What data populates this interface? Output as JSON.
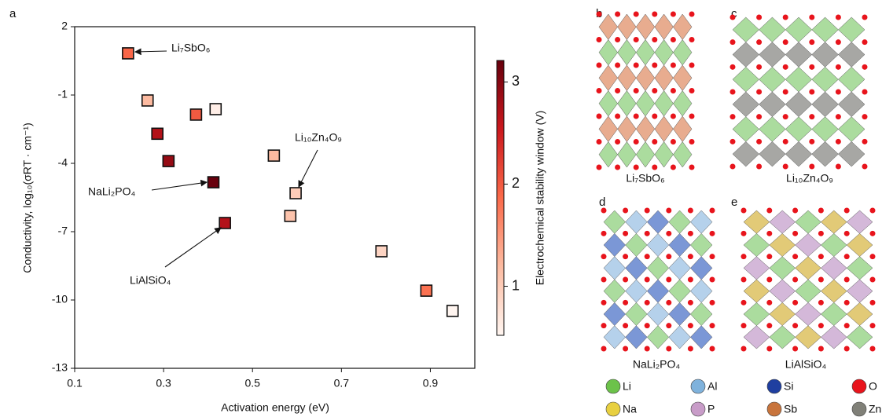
{
  "chart_data": {
    "type": "scatter",
    "panel_label": "a",
    "x_label": "Activation energy (eV)",
    "y_label": "Conductivity, log₁₀(σRT · cm⁻¹)",
    "x": [
      0.22,
      0.264,
      0.286,
      0.311,
      0.373,
      0.417,
      0.412,
      0.438,
      0.548,
      0.597,
      0.585,
      0.79,
      0.891,
      0.95
    ],
    "values": [
      0.83,
      -1.24,
      -2.7,
      -3.9,
      -1.86,
      -1.62,
      -4.83,
      -6.62,
      -3.66,
      -5.31,
      -6.31,
      -7.86,
      -9.59,
      -10.48
    ],
    "color_values": [
      1.9,
      1.2,
      2.7,
      2.9,
      2.0,
      0.6,
      3.2,
      2.7,
      1.2,
      1.0,
      1.1,
      0.9,
      1.8,
      0.5
    ],
    "xlim": [
      0.1,
      1.0
    ],
    "ylim": [
      -13,
      2
    ],
    "xticks": [
      0.1,
      0.3,
      0.5,
      0.7,
      0.9
    ],
    "yticks": [
      2,
      -1,
      -4,
      -7,
      -10,
      -13
    ],
    "colorbar": {
      "label": "Electrochemical stability window (V)",
      "clim": [
        0.52,
        3.21
      ],
      "ticks": [
        1,
        2,
        3
      ],
      "colormap": [
        "#fff5f0",
        "#fcbba1",
        "#fb6a4a",
        "#cb181d",
        "#67000d"
      ]
    },
    "annotations": [
      "Li₇SbO₆",
      "Li₁₀Zn₄O₉",
      "NaLi₂PO₄",
      "LiAlSiO₄"
    ]
  },
  "structures": [
    {
      "panel": "b",
      "label": "Li₇SbO₆"
    },
    {
      "panel": "c",
      "label": "Li₁₀Zn₄O₉"
    },
    {
      "panel": "d",
      "label": "NaLi₂PO₄"
    },
    {
      "panel": "e",
      "label": "LiAlSiO₄"
    }
  ],
  "element_legend": [
    {
      "name": "Li",
      "color": "#6cc24a"
    },
    {
      "name": "Al",
      "color": "#7fb2dc"
    },
    {
      "name": "Si",
      "color": "#1f3fa0"
    },
    {
      "name": "O",
      "color": "#e8141c"
    },
    {
      "name": "Na",
      "color": "#e8d040"
    },
    {
      "name": "P",
      "color": "#c89cc8"
    },
    {
      "name": "Sb",
      "color": "#c8743c"
    },
    {
      "name": "Zn",
      "color": "#808078"
    }
  ]
}
